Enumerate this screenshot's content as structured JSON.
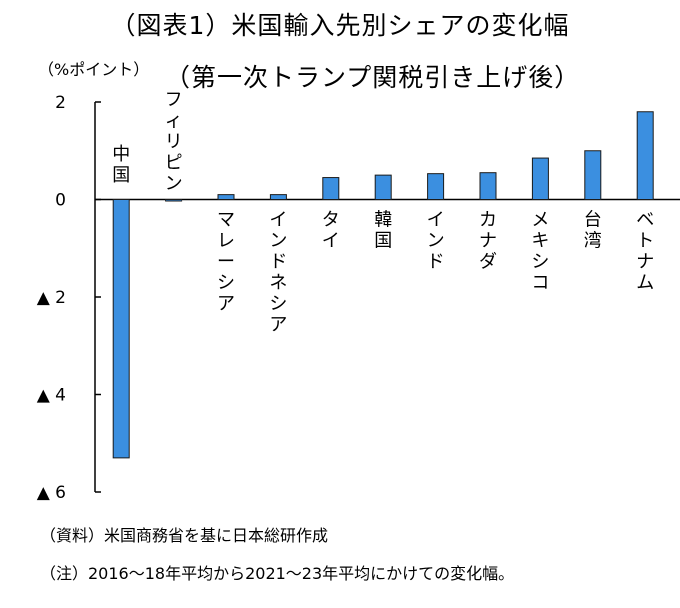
{
  "title": "（図表1）米国輸入先別シェアの変化幅",
  "subtitle": "（第一次トランプ関税引き上げ後）",
  "y_unit": "（%ポイント）",
  "notes": {
    "source": "（資料）米国商務省を基に日本総研作成",
    "note": "（注）2016～18年平均から2021～23年平均にかけての変化幅。"
  },
  "colors": {
    "bar_fill": "#3b8fe0",
    "bar_stroke": "#1a1a1a"
  },
  "chart_data": {
    "type": "bar",
    "categories": [
      "中国",
      "フィリピン",
      "マレーシア",
      "インドネシア",
      "タイ",
      "韓国",
      "インド",
      "カナダ",
      "メキシコ",
      "台湾",
      "ベトナム"
    ],
    "values": [
      -5.3,
      -0.02,
      0.1,
      0.1,
      0.45,
      0.5,
      0.53,
      0.55,
      0.85,
      1.0,
      1.8
    ],
    "ylim": [
      -6,
      2
    ],
    "yticks": [
      {
        "value": 2,
        "label": "2"
      },
      {
        "value": 0,
        "label": "0"
      },
      {
        "value": -2,
        "label": "▲ 2"
      },
      {
        "value": -4,
        "label": "▲ 4"
      },
      {
        "value": -6,
        "label": "▲ 6"
      }
    ],
    "grid": false
  }
}
